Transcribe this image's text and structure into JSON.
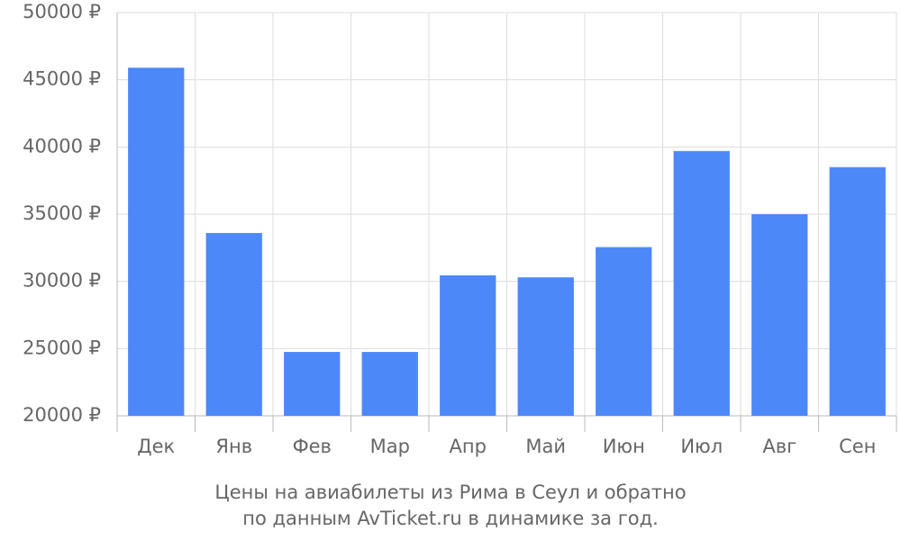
{
  "chart_data": {
    "type": "bar",
    "title": "Цены на авиабилеты из Рима в Сеул и обратно",
    "subtitle": "по данным AvTicket.ru в динамике за год.",
    "categories": [
      "Дек",
      "Янв",
      "Фев",
      "Мар",
      "Апр",
      "Май",
      "Июн",
      "Июл",
      "Авг",
      "Сен"
    ],
    "values": [
      45900,
      33600,
      24750,
      24750,
      30450,
      30300,
      32550,
      39700,
      35000,
      38500
    ],
    "color": "#4d88f9",
    "ylim": [
      20000,
      50000
    ],
    "yticks": [
      {
        "value": 20000,
        "label": "20000 ₽"
      },
      {
        "value": 25000,
        "label": "25000 ₽"
      },
      {
        "value": 30000,
        "label": "30000 ₽"
      },
      {
        "value": 35000,
        "label": "35000 ₽"
      },
      {
        "value": 40000,
        "label": "40000 ₽"
      },
      {
        "value": 45000,
        "label": "45000 ₽"
      },
      {
        "value": 50000,
        "label": "50000 ₽"
      }
    ],
    "grid": true
  }
}
